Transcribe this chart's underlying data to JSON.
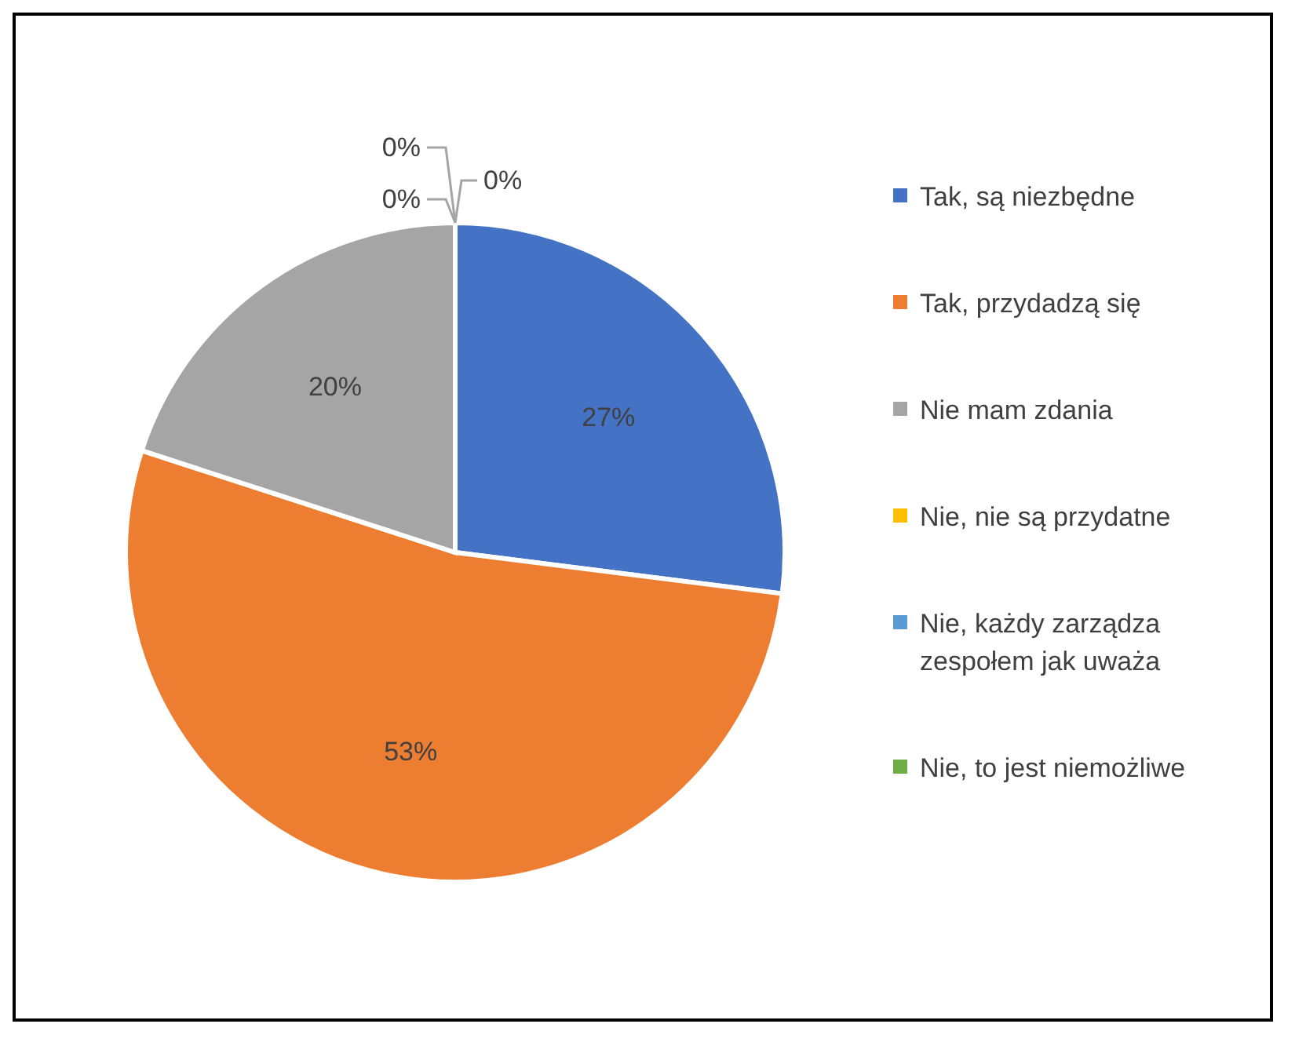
{
  "chart_data": {
    "type": "pie",
    "categories": [
      "Tak, są niezbędne",
      "Tak, przydadzą się",
      "Nie mam zdania",
      "Nie, nie są przydatne",
      "Nie, każdy zarządza zespołem jak uważa",
      "Nie, to jest niemożliwe"
    ],
    "values": [
      27,
      53,
      20,
      0,
      0,
      0
    ],
    "colors": [
      "#4472c4",
      "#ed7d31",
      "#a5a5a5",
      "#ffc000",
      "#5b9bd5",
      "#70ad47"
    ],
    "value_labels": [
      "27%",
      "53%",
      "20%",
      "0%",
      "0%",
      "0%"
    ],
    "legend": "right"
  }
}
